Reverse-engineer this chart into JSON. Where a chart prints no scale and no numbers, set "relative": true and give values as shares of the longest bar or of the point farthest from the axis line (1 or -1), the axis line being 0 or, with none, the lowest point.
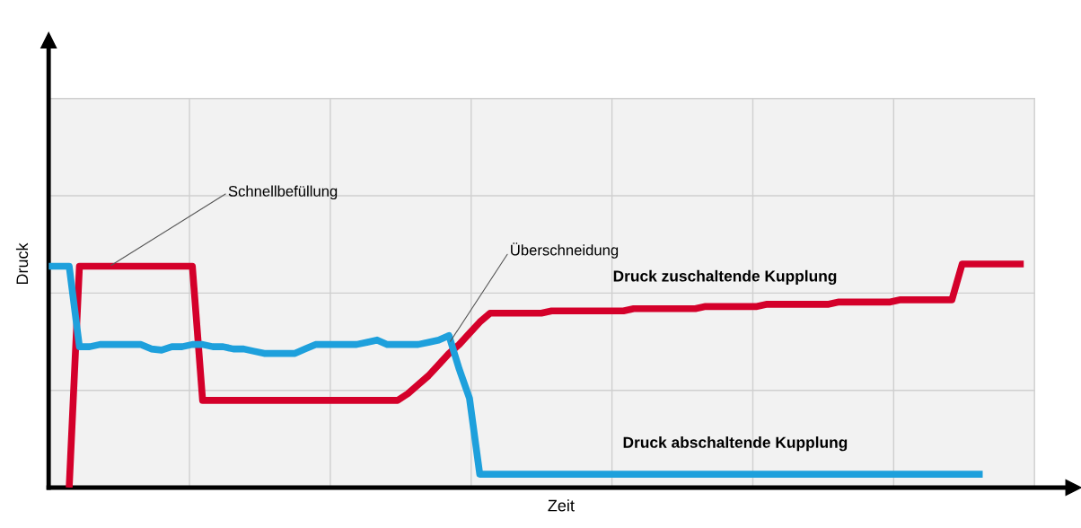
{
  "chart_data": {
    "type": "line",
    "relative": true,
    "xlabel": "Zeit",
    "ylabel": "Druck",
    "grid": true,
    "line_style": "solid",
    "marker": "none",
    "categories": [
      null,
      null,
      null,
      null,
      null,
      null,
      null,
      null,
      null,
      null,
      null,
      null,
      null,
      null,
      null,
      null,
      null,
      null,
      null,
      null,
      null,
      null,
      null,
      null,
      null,
      null,
      null,
      null,
      null,
      null,
      null,
      null,
      null,
      null,
      null,
      null,
      null,
      null,
      null,
      null,
      null,
      null,
      null,
      null,
      null,
      null,
      null,
      null,
      null,
      null,
      null,
      null,
      null,
      null,
      null,
      null,
      null,
      null,
      null,
      null,
      null,
      null,
      null,
      null,
      null,
      null,
      null,
      null,
      null,
      null,
      null,
      null,
      null,
      null,
      null,
      null,
      null,
      null,
      null,
      null,
      null,
      null,
      null,
      null,
      null,
      null,
      null,
      null,
      null,
      null,
      null,
      null,
      null,
      null,
      null,
      null,
      null
    ],
    "series": [
      {
        "name": "Druck zuschaltende Kupplung",
        "color": "#d4002a",
        "values": [
          null,
          null,
          0,
          0.99,
          0.99,
          0.99,
          0.99,
          0.99,
          0.99,
          0.99,
          0.99,
          0.99,
          0.99,
          0.99,
          0.99,
          0.39,
          0.39,
          0.39,
          0.39,
          0.39,
          0.39,
          0.39,
          0.39,
          0.39,
          0.39,
          0.39,
          0.39,
          0.39,
          0.39,
          0.39,
          0.39,
          0.39,
          0.39,
          0.39,
          0.39,
          0.42,
          0.46,
          0.5,
          0.55,
          0.6,
          0.64,
          0.69,
          0.74,
          0.78,
          0.78,
          0.78,
          0.78,
          0.78,
          0.78,
          0.79,
          0.79,
          0.79,
          0.79,
          0.79,
          0.79,
          0.79,
          0.79,
          0.8,
          0.8,
          0.8,
          0.8,
          0.8,
          0.8,
          0.8,
          0.81,
          0.81,
          0.81,
          0.81,
          0.81,
          0.81,
          0.82,
          0.82,
          0.82,
          0.82,
          0.82,
          0.82,
          0.82,
          0.83,
          0.83,
          0.83,
          0.83,
          0.83,
          0.83,
          0.84,
          0.84,
          0.84,
          0.84,
          0.84,
          0.84,
          1.0,
          1.0,
          1.0,
          1.0,
          1.0,
          1.0,
          1.0,
          null
        ]
      },
      {
        "name": "Druck abschaltende Kupplung",
        "color": "#1ea0dc",
        "values": [
          0.99,
          0.99,
          0.99,
          0.63,
          0.63,
          0.64,
          0.64,
          0.64,
          0.64,
          0.64,
          0.62,
          0.615,
          0.63,
          0.63,
          0.64,
          0.64,
          0.63,
          0.63,
          0.62,
          0.62,
          0.61,
          0.6,
          0.6,
          0.6,
          0.6,
          0.62,
          0.64,
          0.64,
          0.64,
          0.64,
          0.64,
          0.65,
          0.66,
          0.64,
          0.64,
          0.64,
          0.64,
          0.65,
          0.66,
          0.68,
          0.53,
          0.4,
          0.06,
          0.06,
          0.06,
          0.06,
          0.06,
          0.06,
          0.06,
          0.06,
          0.06,
          0.06,
          0.06,
          0.06,
          0.06,
          0.06,
          0.06,
          0.06,
          0.06,
          0.06,
          0.06,
          0.06,
          0.06,
          0.06,
          0.06,
          0.06,
          0.06,
          0.06,
          0.06,
          0.06,
          0.06,
          0.06,
          0.06,
          0.06,
          0.06,
          0.06,
          0.06,
          0.06,
          0.06,
          0.06,
          0.06,
          0.06,
          0.06,
          0.06,
          0.06,
          0.06,
          0.06,
          0.06,
          0.06,
          0.06,
          0.06,
          0.06,
          null,
          null,
          null,
          null,
          null
        ]
      }
    ],
    "annotations": [
      "Schnellbefüllung",
      "Überschneidung"
    ]
  }
}
